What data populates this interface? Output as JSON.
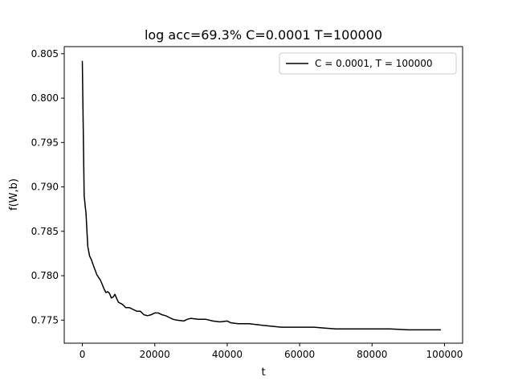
{
  "chart_data": {
    "type": "line",
    "title": "log acc=69.3% C=0.0001 T=100000",
    "xlabel": "t",
    "ylabel": "f(W,b)",
    "xlim": [
      -5000,
      105000
    ],
    "ylim": [
      0.7724,
      0.8058
    ],
    "xticks": [
      0,
      20000,
      40000,
      60000,
      80000,
      100000
    ],
    "xtick_labels": [
      "0",
      "20000",
      "40000",
      "60000",
      "80000",
      "100000"
    ],
    "yticks": [
      0.775,
      0.78,
      0.785,
      0.79,
      0.795,
      0.8,
      0.805
    ],
    "ytick_labels": [
      "0.775",
      "0.780",
      "0.785",
      "0.790",
      "0.795",
      "0.800",
      "0.805"
    ],
    "grid": false,
    "legend_position": "top-right",
    "series": [
      {
        "name": "C = 0.0001, T = 100000",
        "color": "#000000",
        "x": [
          0,
          500,
          1000,
          1500,
          2000,
          2500,
          3000,
          4000,
          4500,
          5000,
          6000,
          6500,
          7000,
          7500,
          8000,
          8500,
          9000,
          9500,
          10000,
          11000,
          12000,
          13000,
          14000,
          15000,
          16000,
          17000,
          18000,
          19000,
          20000,
          21000,
          22000,
          23000,
          24000,
          25000,
          26000,
          28000,
          29000,
          30000,
          32000,
          34000,
          36000,
          38000,
          40000,
          41000,
          43000,
          46000,
          50000,
          55000,
          58000,
          60000,
          64000,
          67000,
          70000,
          75000,
          80000,
          85000,
          90000,
          95000,
          99000
        ],
        "y": [
          0.8042,
          0.789,
          0.787,
          0.7833,
          0.7822,
          0.7818,
          0.7812,
          0.7801,
          0.7798,
          0.7795,
          0.7785,
          0.7781,
          0.7782,
          0.778,
          0.7775,
          0.7776,
          0.7779,
          0.7774,
          0.777,
          0.7768,
          0.7764,
          0.7764,
          0.7762,
          0.776,
          0.776,
          0.7756,
          0.7755,
          0.7756,
          0.7758,
          0.7758,
          0.7756,
          0.7755,
          0.7753,
          0.7751,
          0.775,
          0.7749,
          0.7751,
          0.7752,
          0.7751,
          0.7751,
          0.7749,
          0.7748,
          0.7749,
          0.7747,
          0.7746,
          0.7746,
          0.7744,
          0.7742,
          0.7742,
          0.7742,
          0.7742,
          0.7741,
          0.774,
          0.774,
          0.774,
          0.774,
          0.7739,
          0.7739,
          0.7739
        ]
      }
    ]
  }
}
